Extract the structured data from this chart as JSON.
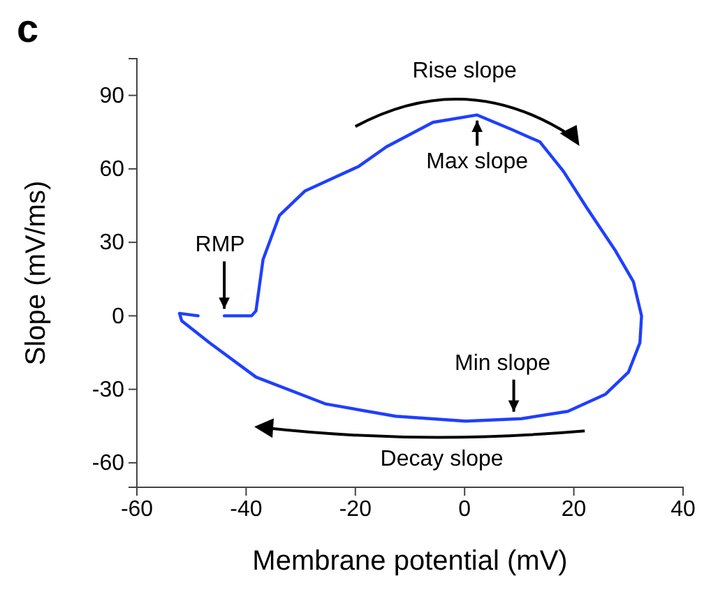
{
  "chart_data": {
    "type": "line",
    "title": "c",
    "xlabel": "Membrane potential (mV)",
    "ylabel": "Slope (mV/ms)",
    "xlim": [
      -60,
      40
    ],
    "xticks": [
      -60,
      -40,
      -20,
      0,
      20,
      40
    ],
    "ylim": [
      -70,
      105
    ],
    "yticks": [
      -60,
      -30,
      0,
      30,
      60,
      90
    ],
    "grid": false,
    "marker": "none",
    "line_style": "solid",
    "series": [
      {
        "color": "#1f3fff",
        "x": [
          -44,
          -39,
          -38.2,
          -36.9,
          -33.9,
          -29.2,
          -19.4,
          -14.3,
          -5.8,
          2.3,
          8.7,
          13.8,
          18.1,
          22.4,
          27.5,
          30.9,
          32.4,
          32.1,
          30,
          25.8,
          18.9,
          10.4,
          0.2,
          -12.6,
          -25.4,
          -38.2,
          -46.7,
          -51.8,
          -52.2,
          -48.8
        ],
        "values": [
          0,
          0,
          2,
          23,
          41,
          51,
          61,
          69,
          79,
          82,
          76,
          71,
          59,
          44,
          27,
          14,
          0,
          -11,
          -23,
          -32,
          -39,
          -42,
          -43,
          -41,
          -36,
          -25,
          -11,
          -2,
          1,
          0
        ]
      }
    ],
    "annotations": [
      {
        "text": "RMP",
        "x": -44,
        "y": 0
      },
      {
        "text": "Max slope",
        "x": 2.3,
        "y": 82
      },
      {
        "text": "Min slope",
        "x": 9,
        "y": -42
      },
      "Rise slope",
      "Decay slope"
    ]
  }
}
